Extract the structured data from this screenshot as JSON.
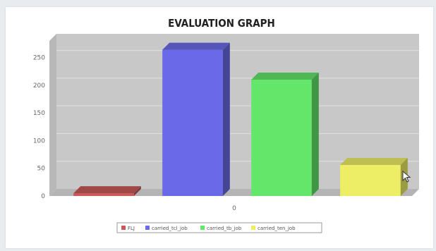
{
  "chart_data": {
    "type": "bar",
    "title": "EVALUATION GRAPH",
    "categories": [
      "0"
    ],
    "series": [
      {
        "name": "FLJ",
        "value": 5,
        "color": "#c85a5a"
      },
      {
        "name": "carried_tcl_job",
        "value": 264,
        "color": "#6a6ae8"
      },
      {
        "name": "carried_tb_job",
        "value": 210,
        "color": "#63e66a"
      },
      {
        "name": "carried_ten_job",
        "value": 56,
        "color": "#eeee66"
      }
    ],
    "ylim": [
      0,
      280
    ],
    "yticks": [
      0,
      50,
      100,
      150,
      200,
      250
    ],
    "xlabel": "",
    "ylabel": "",
    "grid": true,
    "legend_position": "bottom"
  },
  "colors": {
    "plot_background": "#c8c8c8",
    "plot_floor": "#b4b4b4"
  }
}
